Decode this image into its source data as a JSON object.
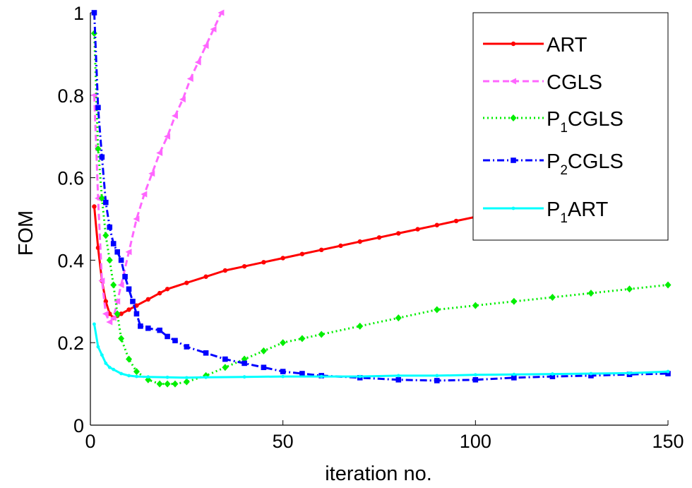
{
  "chart_data": {
    "type": "line",
    "xlabel": "iteration no.",
    "ylabel": "FOM",
    "xlim": [
      0,
      150
    ],
    "ylim": [
      0,
      1
    ],
    "xticks": [
      0,
      50,
      100,
      150
    ],
    "yticks": [
      0,
      0.2,
      0.4,
      0.6,
      0.8,
      1
    ],
    "xtick_labels": [
      "0",
      "50",
      "100",
      "150"
    ],
    "ytick_labels": [
      "0",
      "0.2",
      "0.4",
      "0.6",
      "0.8",
      "1"
    ],
    "grid": false,
    "legend_position": "top-right",
    "series": [
      {
        "key": "art",
        "legend_main": "ART",
        "legend_sub": "",
        "legend_tail": "",
        "color": "#ff0000",
        "line_style": "solid",
        "marker": "circle",
        "x": [
          1,
          2,
          3,
          4,
          5,
          6,
          7,
          8,
          10,
          12,
          15,
          18,
          20,
          25,
          30,
          35,
          40,
          45,
          50,
          55,
          60,
          65,
          70,
          75,
          80,
          85,
          90,
          95,
          100
        ],
        "y": [
          0.53,
          0.43,
          0.35,
          0.3,
          0.27,
          0.26,
          0.265,
          0.27,
          0.28,
          0.29,
          0.305,
          0.32,
          0.33,
          0.345,
          0.36,
          0.375,
          0.385,
          0.395,
          0.405,
          0.415,
          0.425,
          0.435,
          0.445,
          0.455,
          0.465,
          0.475,
          0.485,
          0.495,
          0.505
        ]
      },
      {
        "key": "cgls",
        "legend_main": "CGLS",
        "legend_sub": "",
        "legend_tail": "",
        "color": "#ff66ff",
        "line_style": "dashed",
        "marker": "triangle",
        "x": [
          1,
          2,
          3,
          4,
          5,
          6,
          7,
          8,
          10,
          12,
          14,
          16,
          18,
          20,
          22,
          24,
          26,
          28,
          30,
          32,
          34
        ],
        "y": [
          0.8,
          0.55,
          0.35,
          0.27,
          0.25,
          0.26,
          0.3,
          0.34,
          0.42,
          0.5,
          0.56,
          0.61,
          0.66,
          0.7,
          0.75,
          0.79,
          0.84,
          0.88,
          0.92,
          0.96,
          1.0
        ]
      },
      {
        "key": "p1cgls",
        "legend_main": "P",
        "legend_sub": "1",
        "legend_tail": "CGLS",
        "color": "#00ee00",
        "line_style": "dotted",
        "marker": "diamond",
        "x": [
          1,
          2,
          3,
          4,
          5,
          6,
          7,
          8,
          10,
          12,
          15,
          18,
          20,
          22,
          25,
          30,
          35,
          40,
          45,
          50,
          55,
          60,
          70,
          80,
          90,
          100,
          110,
          120,
          130,
          140,
          150
        ],
        "y": [
          0.95,
          0.67,
          0.55,
          0.46,
          0.4,
          0.34,
          0.27,
          0.21,
          0.16,
          0.13,
          0.11,
          0.1,
          0.1,
          0.1,
          0.105,
          0.12,
          0.14,
          0.16,
          0.18,
          0.2,
          0.21,
          0.22,
          0.24,
          0.26,
          0.28,
          0.29,
          0.3,
          0.31,
          0.32,
          0.33,
          0.34
        ]
      },
      {
        "key": "p2cgls",
        "legend_main": "P",
        "legend_sub": "2",
        "legend_tail": "CGLS",
        "color": "#0000ff",
        "line_style": "dashdot",
        "marker": "square",
        "x": [
          1,
          2,
          3,
          4,
          5,
          6,
          7,
          8,
          9,
          10,
          11,
          12,
          13,
          15,
          18,
          20,
          22,
          25,
          30,
          35,
          40,
          45,
          50,
          55,
          60,
          70,
          80,
          90,
          100,
          110,
          120,
          130,
          140,
          150
        ],
        "y": [
          1.0,
          0.77,
          0.65,
          0.54,
          0.48,
          0.44,
          0.42,
          0.4,
          0.36,
          0.33,
          0.3,
          0.27,
          0.24,
          0.235,
          0.23,
          0.215,
          0.205,
          0.19,
          0.175,
          0.16,
          0.15,
          0.14,
          0.13,
          0.125,
          0.12,
          0.115,
          0.11,
          0.108,
          0.11,
          0.115,
          0.118,
          0.12,
          0.123,
          0.125
        ]
      },
      {
        "key": "p1art",
        "legend_main": "P",
        "legend_sub": "1",
        "legend_tail": "ART",
        "color": "#00ffff",
        "line_style": "solid",
        "marker": "point",
        "x": [
          1,
          2,
          3,
          4,
          5,
          6,
          8,
          10,
          12,
          15,
          20,
          25,
          30,
          40,
          50,
          60,
          70,
          80,
          90,
          100,
          110,
          120,
          130,
          140,
          150
        ],
        "y": [
          0.245,
          0.19,
          0.17,
          0.15,
          0.14,
          0.135,
          0.125,
          0.12,
          0.118,
          0.117,
          0.116,
          0.115,
          0.116,
          0.117,
          0.118,
          0.118,
          0.118,
          0.12,
          0.12,
          0.122,
          0.123,
          0.124,
          0.125,
          0.126,
          0.13
        ]
      }
    ]
  }
}
